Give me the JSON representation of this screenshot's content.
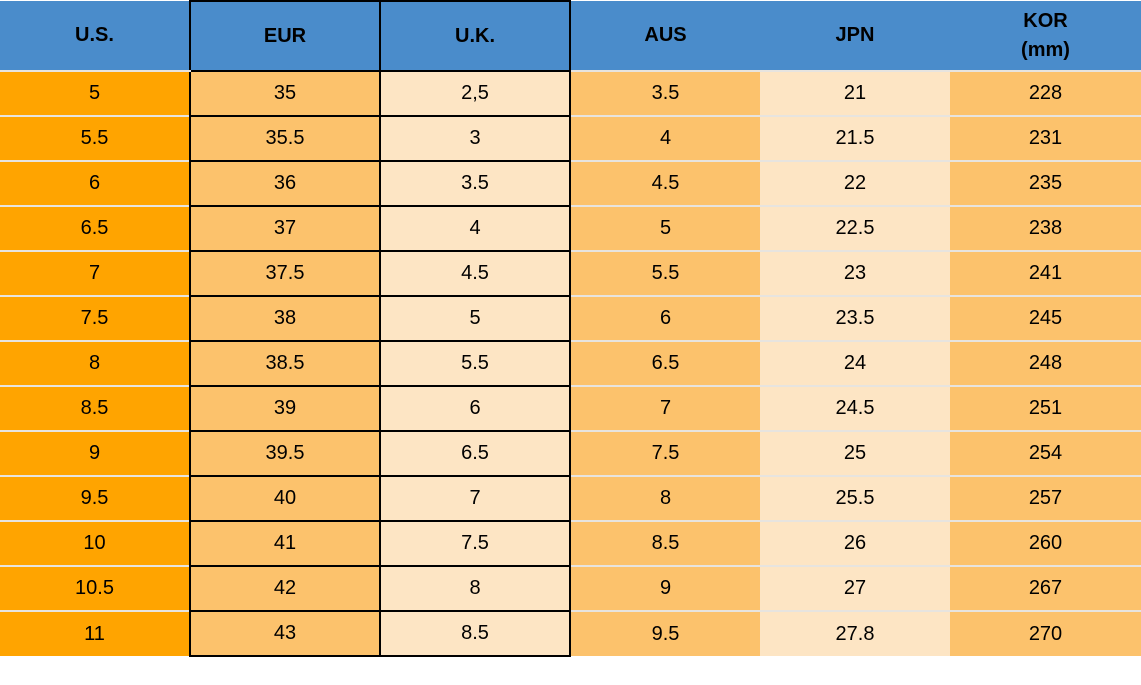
{
  "chart_data": {
    "type": "table",
    "columns": [
      {
        "key": "us",
        "label": "U.S."
      },
      {
        "key": "eur",
        "label": "EUR"
      },
      {
        "key": "uk",
        "label": "U.K."
      },
      {
        "key": "aus",
        "label": "AUS"
      },
      {
        "key": "jpn",
        "label": "JPN"
      },
      {
        "key": "kor",
        "label": "KOR",
        "unit": "(mm)"
      }
    ],
    "rows": [
      [
        "5",
        "35",
        "2,5",
        "3.5",
        "21",
        "228"
      ],
      [
        "5.5",
        "35.5",
        "3",
        "4",
        "21.5",
        "231"
      ],
      [
        "6",
        "36",
        "3.5",
        "4.5",
        "22",
        "235"
      ],
      [
        "6.5",
        "37",
        "4",
        "5",
        "22.5",
        "238"
      ],
      [
        "7",
        "37.5",
        "4.5",
        "5.5",
        "23",
        "241"
      ],
      [
        "7.5",
        "38",
        "5",
        "6",
        "23.5",
        "245"
      ],
      [
        "8",
        "38.5",
        "5.5",
        "6.5",
        "24",
        "248"
      ],
      [
        "8.5",
        "39",
        "6",
        "7",
        "24.5",
        "251"
      ],
      [
        "9",
        "39.5",
        "6.5",
        "7.5",
        "25",
        "254"
      ],
      [
        "9.5",
        "40",
        "7",
        "8",
        "25.5",
        "257"
      ],
      [
        "10",
        "41",
        "7.5",
        "8.5",
        "26",
        "260"
      ],
      [
        "10.5",
        "42",
        "8",
        "9",
        "27",
        "267"
      ],
      [
        "11",
        "43",
        "8.5",
        "9.5",
        "27.8",
        "270"
      ]
    ]
  },
  "palette": {
    "header_bg": "#4A8CCB",
    "col_us_bg": "#FFA400",
    "col_medium_bg": "#FCC26C",
    "col_light_bg": "#FDE5C4",
    "row_separator": "#E7E4DF",
    "cell_border": "#000000",
    "text": "#000000"
  }
}
